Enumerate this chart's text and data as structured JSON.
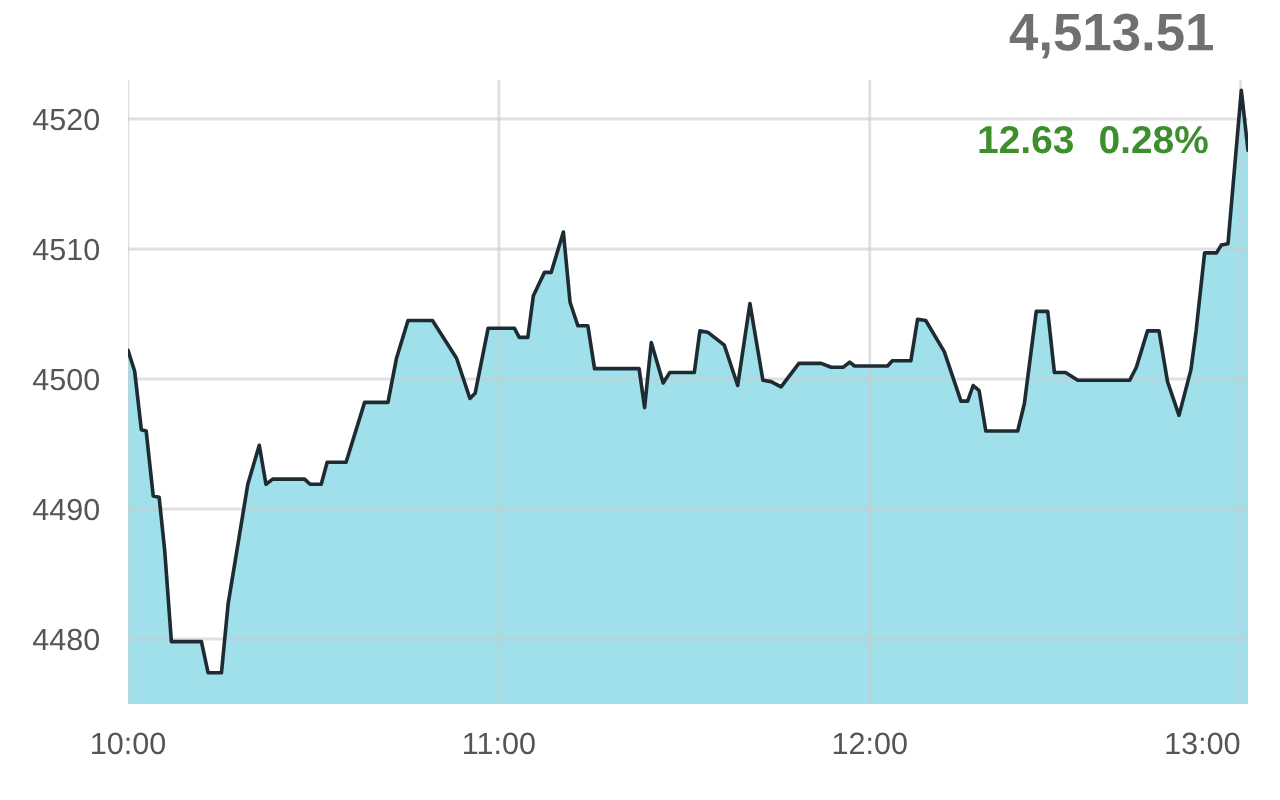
{
  "chart_data": {
    "type": "area",
    "x": [
      10.0,
      10.018,
      10.036,
      10.049,
      10.068,
      10.084,
      10.099,
      10.117,
      10.198,
      10.216,
      10.252,
      10.27,
      10.323,
      10.354,
      10.372,
      10.39,
      10.476,
      10.491,
      10.521,
      10.537,
      10.588,
      10.638,
      10.701,
      10.724,
      10.755,
      10.821,
      10.886,
      10.922,
      10.936,
      10.971,
      11.042,
      11.055,
      11.078,
      11.093,
      11.123,
      11.141,
      11.174,
      11.192,
      11.213,
      11.24,
      11.258,
      11.378,
      11.393,
      11.411,
      11.443,
      11.461,
      11.527,
      11.542,
      11.563,
      11.608,
      11.644,
      11.677,
      11.712,
      11.734,
      11.761,
      11.809,
      11.869,
      11.896,
      11.928,
      11.946,
      11.959,
      12.048,
      12.061,
      12.111,
      12.129,
      12.151,
      12.201,
      12.246,
      12.264,
      12.279,
      12.295,
      12.313,
      12.399,
      12.417,
      12.449,
      12.48,
      12.498,
      12.528,
      12.561,
      12.701,
      12.719,
      12.749,
      12.78,
      12.803,
      12.834,
      12.866,
      12.88,
      12.903,
      12.935,
      12.948,
      12.966,
      12.984,
      13.002,
      13.02
    ],
    "series": [
      {
        "color": "#9fe0ea",
        "values": [
          4502.2,
          4500.6,
          4496.1,
          4496.0,
          4491.0,
          4490.9,
          4486.8,
          4479.8,
          4479.8,
          4477.4,
          4477.4,
          4482.7,
          4491.9,
          4494.9,
          4491.9,
          4492.3,
          4492.3,
          4491.9,
          4491.9,
          4493.6,
          4493.6,
          4498.2,
          4498.2,
          4501.6,
          4504.5,
          4504.5,
          4501.6,
          4498.5,
          4498.9,
          4503.9,
          4503.9,
          4503.2,
          4503.2,
          4506.4,
          4508.2,
          4508.2,
          4511.3,
          4505.9,
          4504.1,
          4504.1,
          4500.8,
          4500.8,
          4497.8,
          4502.8,
          4499.7,
          4500.5,
          4500.5,
          4503.7,
          4503.6,
          4502.6,
          4499.5,
          4505.8,
          4499.9,
          4499.8,
          4499.4,
          4501.2,
          4501.2,
          4500.9,
          4500.9,
          4501.3,
          4501.0,
          4501.0,
          4501.4,
          4501.4,
          4504.6,
          4504.5,
          4502.1,
          4498.3,
          4498.3,
          4499.5,
          4499.1,
          4496.0,
          4496.0,
          4498.1,
          4505.2,
          4505.2,
          4500.5,
          4500.5,
          4499.9,
          4499.9,
          4500.9,
          4503.7,
          4503.7,
          4499.8,
          4497.2,
          4500.7,
          4503.7,
          4509.7,
          4509.7,
          4510.3,
          4510.4,
          4516.3,
          4522.2,
          4517.6
        ]
      }
    ],
    "xlim": [
      10.0,
      13.02
    ],
    "xticks": [
      {
        "value": 10,
        "label": "10:00"
      },
      {
        "value": 11,
        "label": "11:00"
      },
      {
        "value": 12,
        "label": "12:00"
      },
      {
        "value": 13,
        "label": "13:00"
      }
    ],
    "ylim": [
      4475,
      4523
    ],
    "yticks": [
      4480,
      4490,
      4500,
      4510,
      4520
    ],
    "grid": true,
    "line_style": "solid",
    "marker": "none",
    "annotations": [
      "4,513.51",
      "12.63",
      "0.28%"
    ]
  }
}
